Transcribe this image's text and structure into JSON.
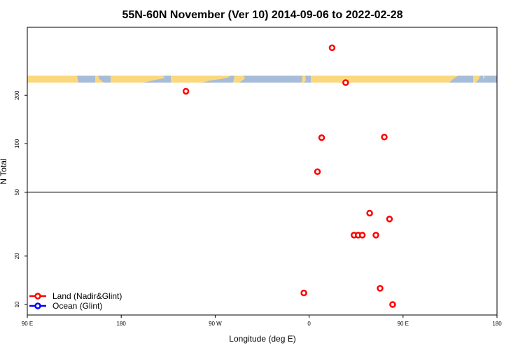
{
  "chart_data": {
    "type": "scatter",
    "title": "55N-60N November (Ver 10)   2014-09-06 to 2022-02-28",
    "xlabel": "Longitude (deg E)",
    "ylabel": "N Total",
    "x_ticks": [
      {
        "value": 0,
        "label": "90 E"
      },
      {
        "value": 90,
        "label": "180"
      },
      {
        "value": 180,
        "label": "90 W"
      },
      {
        "value": 270,
        "label": "0"
      },
      {
        "value": 360,
        "label": "90 E"
      },
      {
        "value": 450,
        "label": "180"
      }
    ],
    "xlim": [
      0,
      450
    ],
    "y_scale": "log",
    "ylim": [
      8.6,
      530
    ],
    "y_ticks": [
      10,
      20,
      50,
      100,
      200
    ],
    "y_reference_line": 50,
    "grid": false,
    "legend_position": "bottom-left",
    "land_strip_colors": {
      "ocean": "#a7bcd8",
      "land": "#fbd87e"
    },
    "series": [
      {
        "name": "Land (Nadir&Glint)",
        "color": "#ff0000",
        "points": [
          {
            "x": 292,
            "y": 395
          },
          {
            "x": 305,
            "y": 240
          },
          {
            "x": 152,
            "y": 212
          },
          {
            "x": 282,
            "y": 109
          },
          {
            "x": 342,
            "y": 110
          },
          {
            "x": 278,
            "y": 67
          },
          {
            "x": 328,
            "y": 37
          },
          {
            "x": 347,
            "y": 34
          },
          {
            "x": 313,
            "y": 27
          },
          {
            "x": 317,
            "y": 27
          },
          {
            "x": 321,
            "y": 27
          },
          {
            "x": 334,
            "y": 27
          },
          {
            "x": 265,
            "y": 11.8
          },
          {
            "x": 338,
            "y": 12.6
          },
          {
            "x": 350,
            "y": 10
          }
        ]
      },
      {
        "name": "Ocean (Glint)",
        "color": "#0000ff",
        "points": []
      }
    ]
  }
}
